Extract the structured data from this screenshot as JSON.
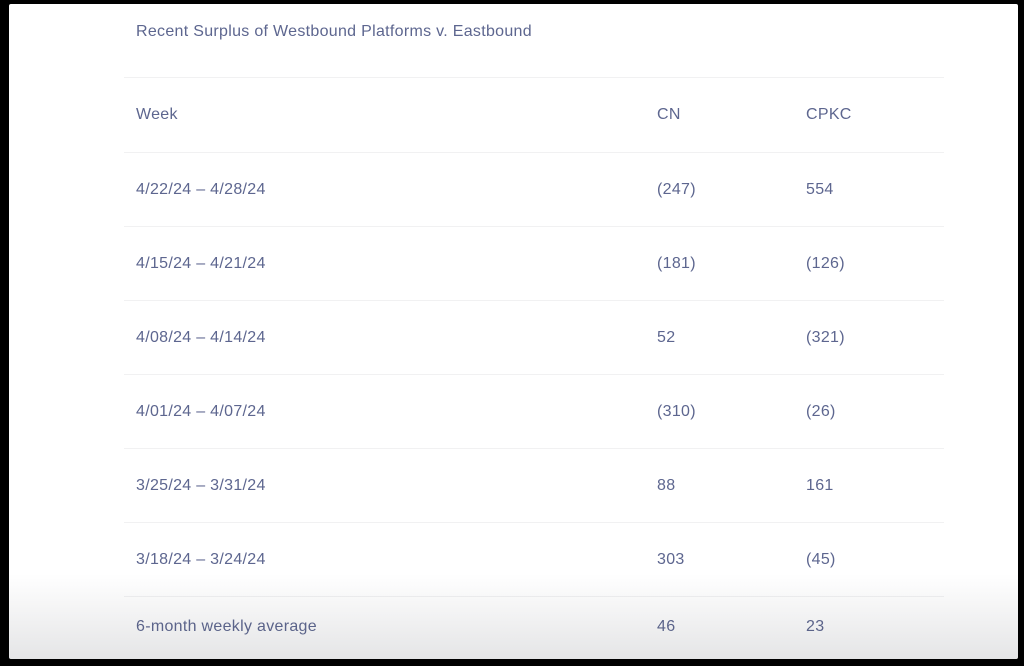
{
  "chart_data": {
    "type": "table",
    "title": "Recent Surplus of Westbound Platforms v. Eastbound",
    "columns": [
      "Week",
      "CN",
      "CPKC"
    ],
    "rows": [
      [
        "4/22/24 – 4/28/24",
        "(247)",
        "554"
      ],
      [
        "4/15/24 – 4/21/24",
        "(181)",
        "(126)"
      ],
      [
        "4/08/24 – 4/14/24",
        "52",
        "(321)"
      ],
      [
        "4/01/24 – 4/07/24",
        "(310)",
        "(26)"
      ],
      [
        "3/25/24 – 3/31/24",
        "88",
        "161"
      ],
      [
        "3/18/24 – 3/24/24",
        "303",
        "(45)"
      ]
    ],
    "footer_row": [
      "6-month weekly average",
      "46",
      "23"
    ],
    "layout": {
      "grid": "horizontal row dividers only",
      "negative_values_notation": "parentheses"
    }
  },
  "colors": {
    "text": "#5d668f",
    "divider": "#f1f1f2",
    "background": "#ffffff",
    "frame": "#000000"
  }
}
